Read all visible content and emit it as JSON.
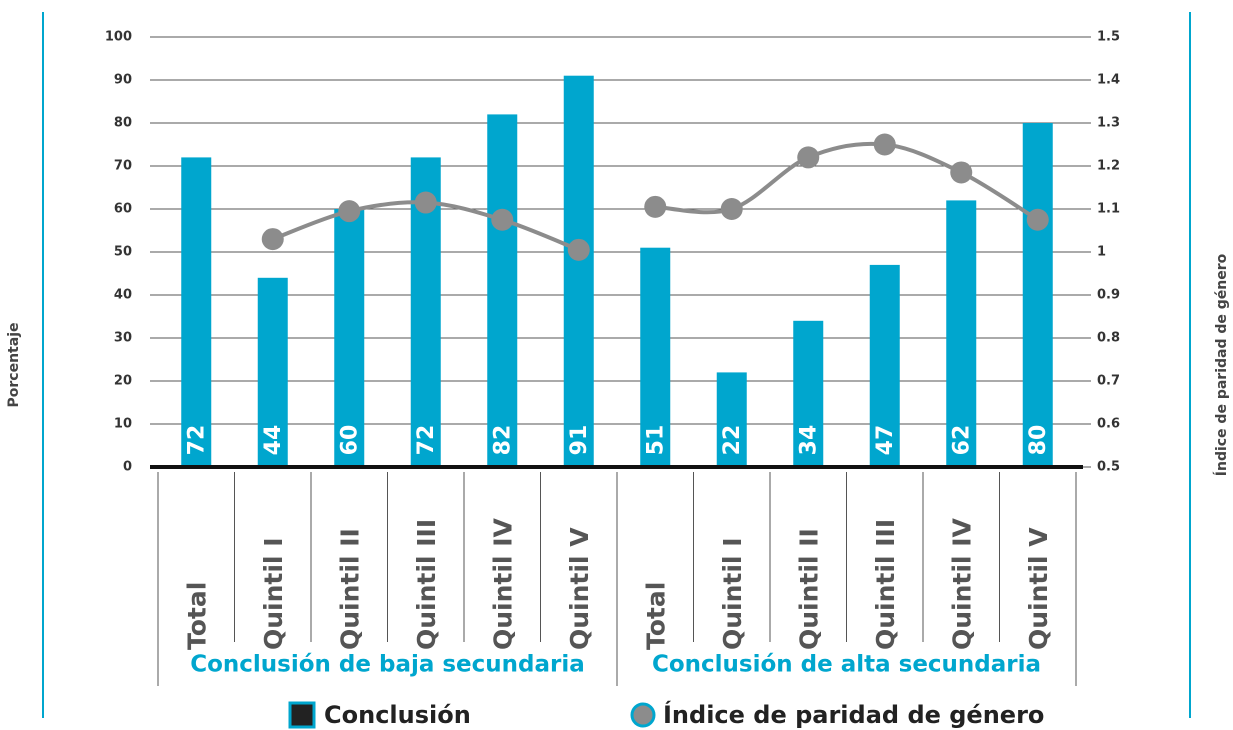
{
  "chart_data": {
    "type": "bar",
    "y_label": "Porcentaje",
    "y2_label": "Índice de paridad de género",
    "groups": [
      {
        "name": "Conclusión de baja secundaria",
        "categories": [
          "Total",
          "Quintil I",
          "Quintil II",
          "Quintil III",
          "Quintil IV",
          "Quintil V"
        ]
      },
      {
        "name": "Conclusión de alta secundaria",
        "categories": [
          "Total",
          "Quintil I",
          "Quintil II",
          "Quintil III",
          "Quintil IV",
          "Quintil V"
        ]
      }
    ],
    "series": [
      {
        "name": "Conclusión",
        "type": "bar",
        "color": "#00a6ce",
        "values": [
          72,
          44,
          60,
          72,
          82,
          91,
          51,
          22,
          34,
          47,
          62,
          80
        ]
      },
      {
        "name": "Índice de paridad de género",
        "type": "line",
        "axis": "y2",
        "color": "#8c8c8c",
        "values": [
          null,
          1.03,
          1.095,
          1.115,
          1.075,
          1.005,
          1.105,
          1.1,
          1.22,
          1.25,
          1.185,
          1.075
        ]
      }
    ],
    "ylim": [
      0,
      100
    ],
    "yticks": [
      0,
      10,
      20,
      30,
      40,
      50,
      60,
      70,
      80,
      90,
      100
    ],
    "y2lim": [
      0.5,
      1.5
    ],
    "y2ticks": [
      0.5,
      0.6,
      0.7,
      0.8,
      0.9,
      1,
      1.1,
      1.2,
      1.3,
      1.4,
      1.5
    ],
    "grid": true
  }
}
